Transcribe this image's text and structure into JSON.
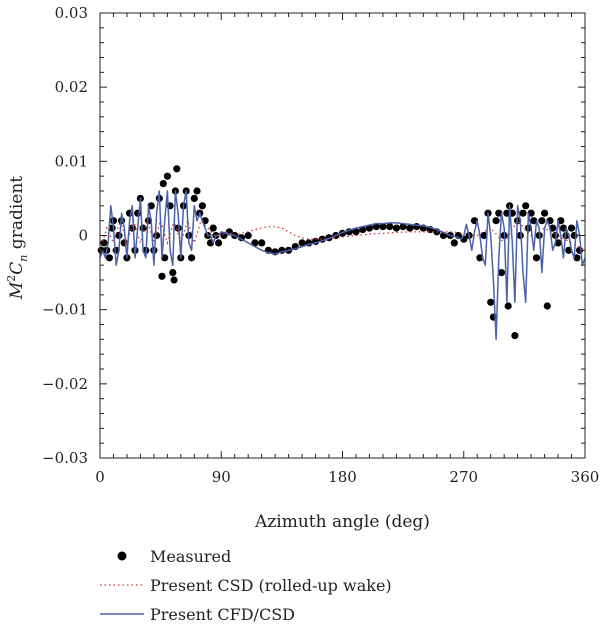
{
  "chart_data": {
    "type": "line",
    "title": "",
    "xlabel": "Azimuth angle (deg)",
    "ylabel": "M²Cₙ gradient",
    "ylabel_parts": {
      "m": "M",
      "sup": "2",
      "c": "C",
      "sub": "n",
      "rest": " gradient"
    },
    "xlim": [
      0,
      360
    ],
    "ylim": [
      -0.03,
      0.03
    ],
    "xticks": [
      0,
      90,
      180,
      270,
      360
    ],
    "xtick_labels": [
      "0",
      "90",
      "180",
      "270",
      "360"
    ],
    "yticks": [
      0.03,
      0.02,
      0.01,
      0,
      -0.01,
      -0.02,
      -0.03
    ],
    "ytick_labels": [
      "0.03",
      "0.02",
      "0.01",
      "0",
      "−0.01",
      "−0.02",
      "−0.03"
    ],
    "grid": false,
    "legend_position": "bottom",
    "colors": {
      "measured": "#000000",
      "csd": "#d9343c",
      "cfd": "#4a62a8"
    },
    "series": [
      {
        "name": "Measured",
        "style": "markers",
        "x": [
          1,
          3,
          5,
          7,
          9,
          10,
          12,
          14,
          16,
          18,
          20,
          22,
          24,
          26,
          28,
          30,
          32,
          34,
          36,
          38,
          40,
          42,
          44,
          46,
          47,
          48,
          50,
          52,
          54,
          55,
          56,
          57,
          58,
          60,
          62,
          64,
          66,
          68,
          70,
          72,
          74,
          76,
          78,
          80,
          82,
          84,
          86,
          88,
          92,
          96,
          100,
          105,
          110,
          115,
          120,
          125,
          130,
          135,
          140,
          145,
          150,
          155,
          160,
          165,
          170,
          175,
          180,
          185,
          190,
          195,
          200,
          205,
          210,
          215,
          220,
          225,
          230,
          235,
          240,
          245,
          250,
          255,
          260,
          263,
          266,
          270,
          274,
          278,
          282,
          285,
          288,
          290,
          292,
          294,
          296,
          298,
          300,
          302,
          303,
          304,
          306,
          308,
          310,
          312,
          314,
          316,
          318,
          320,
          322,
          324,
          326,
          328,
          330,
          332,
          334,
          336,
          338,
          340,
          342,
          344,
          346,
          348,
          350,
          352,
          354,
          356
        ],
        "y": [
          -0.002,
          -0.001,
          -0.002,
          -0.003,
          0.001,
          0.002,
          -0.002,
          0.0,
          0.002,
          -0.001,
          -0.003,
          0.003,
          0.001,
          -0.002,
          0.003,
          0.005,
          0.001,
          -0.002,
          0.002,
          0.004,
          -0.002,
          0.0,
          0.005,
          -0.0055,
          0.007,
          -0.003,
          0.008,
          0.004,
          -0.005,
          -0.006,
          0.006,
          0.009,
          0.001,
          -0.003,
          0.004,
          0.006,
          0.0,
          -0.003,
          0.005,
          0.006,
          0.003,
          0.004,
          0.002,
          0.0,
          -0.001,
          0.001,
          0.0,
          -0.001,
          0.0,
          0.0005,
          0.0,
          -0.0003,
          0.0,
          -0.001,
          -0.001,
          -0.002,
          -0.0022,
          -0.002,
          -0.002,
          -0.0015,
          -0.001,
          -0.001,
          -0.0008,
          -0.0005,
          -0.0003,
          0.0,
          0.0003,
          0.0005,
          0.0005,
          0.0008,
          0.001,
          0.0012,
          0.0012,
          0.0012,
          0.001,
          0.0012,
          0.001,
          0.0012,
          0.001,
          0.0008,
          0.0005,
          0.0,
          0.0,
          -0.001,
          0.0,
          -0.0005,
          0.0,
          0.002,
          -0.003,
          0.0,
          0.003,
          -0.009,
          -0.011,
          0.002,
          0.003,
          -0.005,
          0.0,
          0.003,
          -0.0095,
          0.004,
          0.003,
          -0.0135,
          0.002,
          0.0,
          0.003,
          0.004,
          0.001,
          0.003,
          0.002,
          -0.003,
          0.0,
          0.002,
          0.003,
          -0.0095,
          0.002,
          0.001,
          0.0,
          -0.001,
          0.002,
          0.001,
          0.0,
          -0.002,
          0.001,
          0.0,
          -0.003,
          -0.002
        ]
      },
      {
        "name": "Present CSD (rolled-up wake)",
        "style": "dotted",
        "x": [
          0,
          5,
          10,
          15,
          20,
          25,
          30,
          35,
          40,
          45,
          50,
          55,
          60,
          65,
          70,
          75,
          80,
          85,
          90,
          95,
          100,
          105,
          110,
          115,
          120,
          125,
          130,
          135,
          140,
          145,
          150,
          155,
          160,
          170,
          180,
          190,
          200,
          210,
          220,
          230,
          240,
          250,
          260,
          270,
          280,
          290,
          300,
          310,
          320,
          330,
          340,
          350,
          360
        ],
        "y": [
          -0.002,
          0.001,
          -0.001,
          0.002,
          -0.001,
          0.002,
          -0.001,
          0.002,
          -0.001,
          0.002,
          -0.001,
          0.002,
          -0.001,
          0.002,
          -0.001,
          0.002,
          0.001,
          0.0,
          0.0,
          0.0005,
          0.0,
          0.0003,
          0.0005,
          0.0008,
          0.001,
          0.0012,
          0.0012,
          0.001,
          0.0005,
          0.0,
          -0.0003,
          -0.0005,
          -0.0005,
          -0.0004,
          -0.0002,
          0.0,
          0.0002,
          0.0003,
          0.0004,
          0.0005,
          0.0005,
          0.0005,
          0.0005,
          0.0003,
          0.0,
          0.001,
          -0.001,
          0.002,
          0.0,
          0.001,
          0.0,
          -0.001,
          -0.002
        ]
      },
      {
        "name": "Present CFD/CSD",
        "style": "solid",
        "x": [
          0,
          2,
          4,
          6,
          8,
          10,
          12,
          14,
          16,
          18,
          20,
          22,
          24,
          26,
          28,
          30,
          32,
          34,
          36,
          38,
          40,
          42,
          44,
          46,
          48,
          50,
          52,
          54,
          56,
          58,
          60,
          62,
          64,
          66,
          68,
          70,
          72,
          74,
          76,
          78,
          80,
          82,
          84,
          86,
          88,
          90,
          95,
          100,
          105,
          110,
          115,
          120,
          125,
          130,
          135,
          140,
          145,
          150,
          155,
          160,
          165,
          170,
          175,
          180,
          185,
          190,
          195,
          200,
          205,
          210,
          215,
          220,
          225,
          230,
          235,
          240,
          245,
          250,
          255,
          260,
          265,
          268,
          270,
          272,
          274,
          276,
          278,
          280,
          282,
          284,
          286,
          288,
          290,
          292,
          294,
          296,
          298,
          300,
          302,
          304,
          306,
          308,
          310,
          312,
          314,
          316,
          318,
          320,
          322,
          324,
          326,
          328,
          330,
          332,
          334,
          336,
          338,
          340,
          342,
          344,
          346,
          348,
          350,
          352,
          354,
          356,
          358,
          360
        ],
        "y": [
          -0.003,
          -0.002,
          -0.003,
          -0.001,
          0.004,
          0.001,
          -0.004,
          -0.002,
          0.003,
          0.001,
          -0.003,
          0.002,
          0.004,
          -0.003,
          0.001,
          0.005,
          -0.002,
          -0.003,
          0.004,
          0.002,
          -0.004,
          0.003,
          0.006,
          -0.003,
          0.002,
          0.006,
          -0.002,
          -0.004,
          0.006,
          0.003,
          -0.003,
          0.004,
          0.006,
          -0.001,
          -0.002,
          0.004,
          0.002,
          0.003,
          0.002,
          0.001,
          0.0,
          0.0,
          -0.001,
          0.0,
          0.0,
          0.0005,
          0.0002,
          0.0,
          -0.0005,
          -0.001,
          -0.0015,
          -0.002,
          -0.0023,
          -0.0025,
          -0.0022,
          -0.002,
          -0.0018,
          -0.0015,
          -0.0012,
          -0.001,
          -0.0007,
          -0.0004,
          0.0,
          0.0004,
          0.0007,
          0.001,
          0.0012,
          0.0014,
          0.0016,
          0.0016,
          0.0017,
          0.0017,
          0.0016,
          0.0015,
          0.0014,
          0.0013,
          0.0011,
          0.0008,
          0.0004,
          0.0,
          -0.0002,
          -0.0005,
          0.0,
          0.0015,
          0.0,
          -0.002,
          0.0005,
          0.002,
          0.0,
          -0.003,
          -0.004,
          0.003,
          0.0,
          -0.006,
          -0.014,
          -0.003,
          0.003,
          0.001,
          -0.009,
          0.004,
          -0.001,
          -0.009,
          0.004,
          0.002,
          -0.005,
          -0.009,
          0.003,
          0.001,
          -0.002,
          0.002,
          0.001,
          -0.005,
          0.001,
          0.002,
          0.001,
          -0.002,
          -0.001,
          0.002,
          0.0,
          -0.003,
          0.001,
          0.0,
          -0.002,
          -0.003,
          0.002,
          0.0,
          -0.004,
          -0.003
        ]
      }
    ]
  }
}
